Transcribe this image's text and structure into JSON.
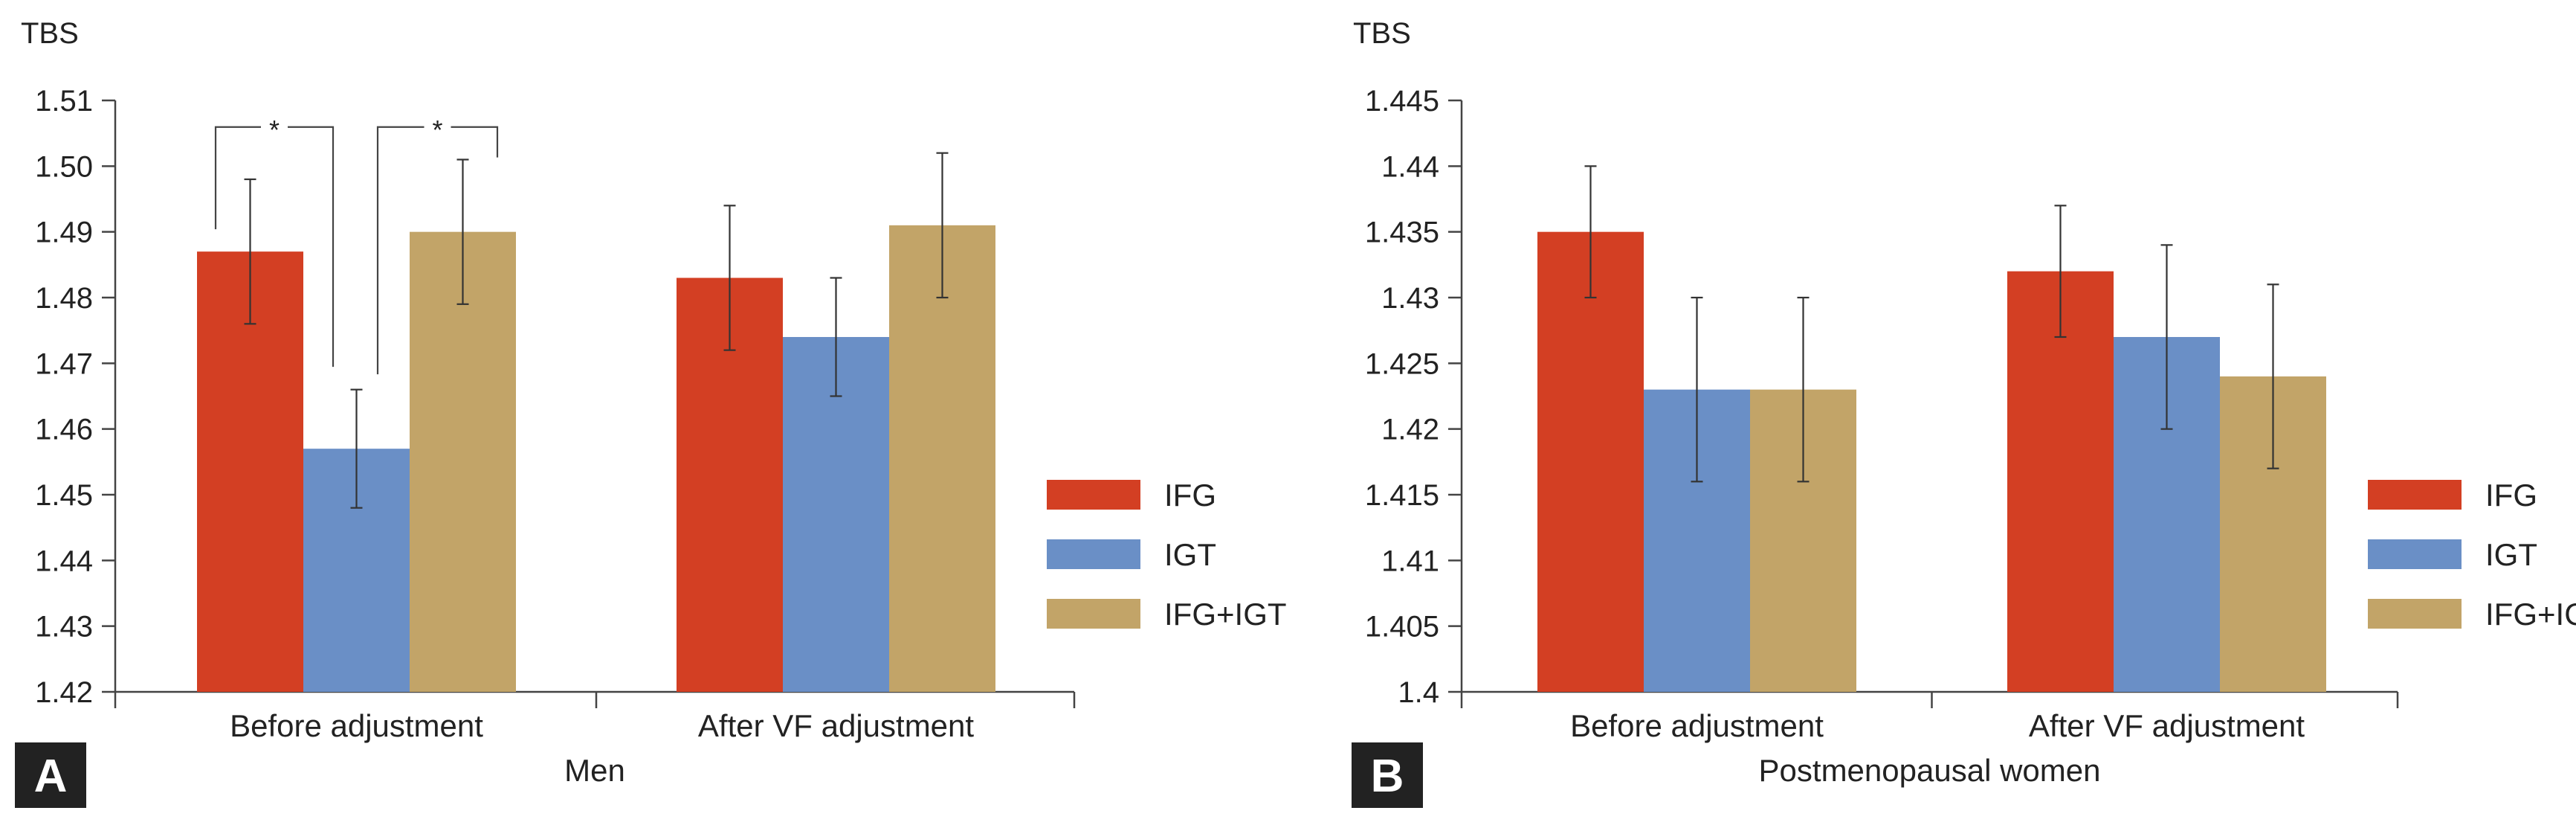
{
  "colors": {
    "IFG": "#d33f23",
    "IGT": "#6a8fc6",
    "IFG+IGT": "#c2a468"
  },
  "chart_data": [
    {
      "type": "bar",
      "panel_label": "A",
      "ylabel": "TBS",
      "xlabel": "Men",
      "categories": [
        "Before adjustment",
        "After VF adjustment"
      ],
      "ylim": [
        1.42,
        1.51
      ],
      "yticks": [
        "1.42",
        "1.43",
        "1.44",
        "1.45",
        "1.46",
        "1.47",
        "1.48",
        "1.49",
        "1.50",
        "1.51"
      ],
      "legend": {
        "placement": "right",
        "entries": [
          "IFG",
          "IGT",
          "IFG+IGT"
        ]
      },
      "series": [
        {
          "name": "IFG",
          "values": [
            1.487,
            1.483
          ],
          "err_low": [
            1.476,
            1.472
          ],
          "err_high": [
            1.498,
            1.494
          ]
        },
        {
          "name": "IGT",
          "values": [
            1.457,
            1.474
          ],
          "err_low": [
            1.448,
            1.465
          ],
          "err_high": [
            1.466,
            1.483
          ]
        },
        {
          "name": "IFG+IGT",
          "values": [
            1.49,
            1.491
          ],
          "err_low": [
            1.479,
            1.48
          ],
          "err_high": [
            1.501,
            1.502
          ]
        }
      ],
      "significance": [
        {
          "category": 0,
          "from": "IFG",
          "to": "IGT",
          "label": "*"
        },
        {
          "category": 0,
          "from": "IGT",
          "to": "IFG+IGT",
          "label": "*"
        }
      ],
      "grid": false
    },
    {
      "type": "bar",
      "panel_label": "B",
      "ylabel": "TBS",
      "xlabel": "Postmenopausal women",
      "categories": [
        "Before adjustment",
        "After VF adjustment"
      ],
      "ylim": [
        1.4,
        1.445
      ],
      "yticks": [
        "1.4",
        "1.405",
        "1.41",
        "1.415",
        "1.42",
        "1.425",
        "1.43",
        "1.435",
        "1.44",
        "1.445"
      ],
      "legend": {
        "placement": "right",
        "entries": [
          "IFG",
          "IGT",
          "IFG+IGT"
        ]
      },
      "series": [
        {
          "name": "IFG",
          "values": [
            1.435,
            1.432
          ],
          "err_low": [
            1.43,
            1.427
          ],
          "err_high": [
            1.44,
            1.437
          ]
        },
        {
          "name": "IGT",
          "values": [
            1.423,
            1.427
          ],
          "err_low": [
            1.416,
            1.42
          ],
          "err_high": [
            1.43,
            1.434
          ]
        },
        {
          "name": "IFG+IGT",
          "values": [
            1.423,
            1.424
          ],
          "err_low": [
            1.416,
            1.417
          ],
          "err_high": [
            1.43,
            1.431
          ]
        }
      ],
      "significance": [],
      "grid": false
    }
  ]
}
